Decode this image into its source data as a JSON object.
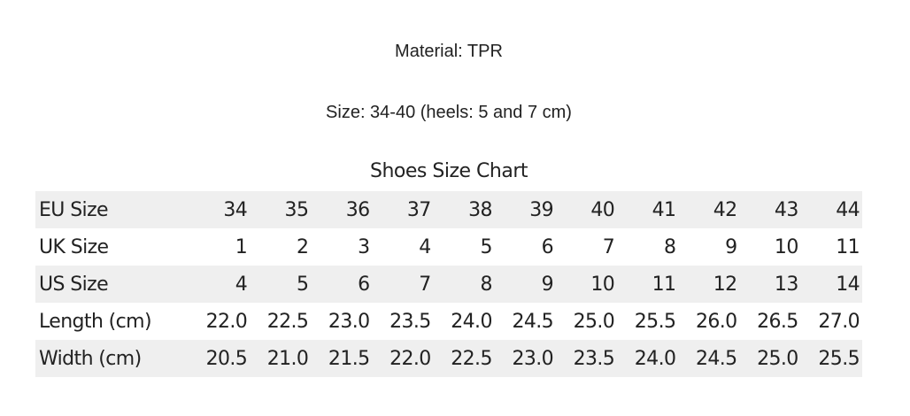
{
  "material": "Material: TPR",
  "size": "Size: 34-40 (heels: 5 and 7 cm)",
  "chart": {
    "title": "Shoes Size Chart",
    "rows": [
      {
        "label": "EU Size",
        "values": [
          "34",
          "35",
          "36",
          "37",
          "38",
          "39",
          "40",
          "41",
          "42",
          "43",
          "44"
        ]
      },
      {
        "label": "UK Size",
        "values": [
          "1",
          "2",
          "3",
          "4",
          "5",
          "6",
          "7",
          "8",
          "9",
          "10",
          "11"
        ]
      },
      {
        "label": "US Size",
        "values": [
          "4",
          "5",
          "6",
          "7",
          "8",
          "9",
          "10",
          "11",
          "12",
          "13",
          "14"
        ]
      },
      {
        "label": "Length (cm)",
        "values": [
          "22.0",
          "22.5",
          "23.0",
          "23.5",
          "24.0",
          "24.5",
          "25.0",
          "25.5",
          "26.0",
          "26.5",
          "27.0"
        ]
      },
      {
        "label": "Width (cm)",
        "values": [
          "20.5",
          "21.0",
          "21.5",
          "22.0",
          "22.5",
          "23.0",
          "23.5",
          "24.0",
          "24.5",
          "25.0",
          "25.5"
        ]
      }
    ]
  }
}
